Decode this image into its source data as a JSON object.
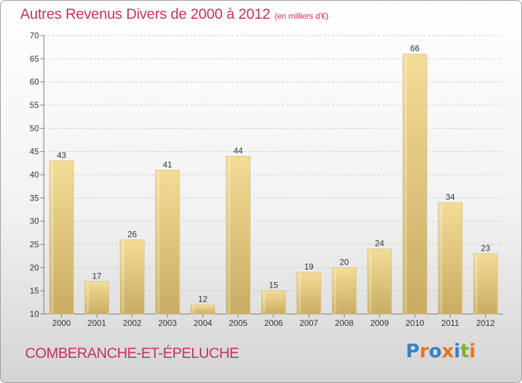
{
  "header": {
    "title": "Autres Revenus Divers de 2000 à 2012",
    "subtitle": "(en milliers d'€)"
  },
  "footer": {
    "commune": "COMBERANCHE-ET-ÉPELUCHE",
    "logo": "Proxiti",
    "logo_colors": [
      "#3a7fc1",
      "#e8731e",
      "#3a7fc1",
      "#e8731e",
      "#3a7fc1",
      "#7fb032",
      "#e8731e"
    ]
  },
  "colors": {
    "accent": "#c8325f",
    "bar_light": "#f3dc97",
    "bar_dark": "#c8ac62",
    "grid": "#c8c8c8"
  },
  "chart_data": {
    "type": "bar",
    "title": "Autres Revenus Divers de 2000 à 2012",
    "subtitle": "(en milliers d'€)",
    "categories": [
      "2000",
      "2001",
      "2002",
      "2003",
      "2004",
      "2005",
      "2006",
      "2007",
      "2008",
      "2009",
      "2010",
      "2011",
      "2012"
    ],
    "values": [
      43,
      17,
      26,
      41,
      12,
      44,
      15,
      19,
      20,
      24,
      66,
      34,
      23
    ],
    "ylim": [
      10,
      70
    ],
    "yticks": [
      10,
      15,
      20,
      25,
      30,
      35,
      40,
      45,
      50,
      55,
      60,
      65,
      70
    ],
    "grid": true,
    "grid_style": "dashed-horizontal",
    "data_labels": true
  }
}
